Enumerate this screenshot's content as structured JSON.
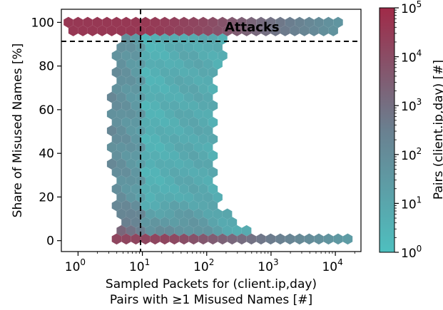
{
  "chart_data": {
    "type": "heatmap",
    "subtype": "hexbin",
    "xlabel_lines": [
      "Sampled Packets for (client.ip,day)",
      "Pairs with ≥1 Misused Names [#]"
    ],
    "ylabel": "Share of Misused Names [%]",
    "x_scale": "log",
    "xlim": [
      0.55,
      25000
    ],
    "ylim": [
      -5,
      106
    ],
    "x_ticks": [
      {
        "value": 1,
        "base": "10",
        "exp": "0"
      },
      {
        "value": 10,
        "base": "10",
        "exp": "1"
      },
      {
        "value": 100,
        "base": "10",
        "exp": "2"
      },
      {
        "value": 1000,
        "base": "10",
        "exp": "3"
      },
      {
        "value": 10000,
        "base": "10",
        "exp": "4"
      }
    ],
    "y_ticks": [
      0,
      20,
      40,
      60,
      80,
      100
    ],
    "threshold_lines": {
      "x": 10,
      "y": 90,
      "style": "dashed"
    },
    "annotation": {
      "text": "Attacks",
      "x": 450,
      "y": 96
    },
    "colorbar": {
      "label": "Pairs (client.ip,day) [#]",
      "scale": "log",
      "range": [
        1,
        100000
      ],
      "ticks": [
        {
          "value": 1,
          "base": "10",
          "exp": "0"
        },
        {
          "value": 10,
          "base": "10",
          "exp": "1"
        },
        {
          "value": 100,
          "base": "10",
          "exp": "2"
        },
        {
          "value": 1000,
          "base": "10",
          "exp": "3"
        },
        {
          "value": 10000,
          "base": "10",
          "exp": "4"
        },
        {
          "value": 100000,
          "base": "10",
          "exp": "5"
        }
      ],
      "colormap": [
        "#4ebfbf",
        "#6a8090",
        "#a02a48"
      ]
    },
    "grid": false,
    "legend": "none"
  }
}
